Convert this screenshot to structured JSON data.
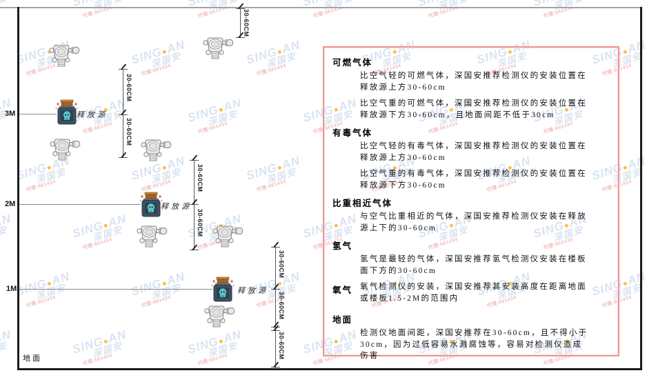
{
  "diagram": {
    "height_3m": "3M",
    "height_2m": "2M",
    "height_1m": "1M",
    "ground_label": "地面",
    "release_source_label": "释放源",
    "dim_label": "30-60CM"
  },
  "watermark": {
    "brand_left": "SING",
    "brand_dot": "●",
    "brand_right": "AN",
    "cjk": "深国安",
    "sub": "代理:661434"
  },
  "info_box": {
    "sections": [
      {
        "heading": "可燃气体",
        "inline": false,
        "paragraphs": [
          "比空气轻的可燃气体，深国安推荐检测仪的安装位置在释放源上方30-60cm",
          "比空气重的可燃气体，深国安推荐检测仪的安装位置在释放源下方30-60cm，且地面间距不低于30cm"
        ]
      },
      {
        "heading": "有毒气体",
        "inline": false,
        "paragraphs": [
          "比空气轻的有毒气体，深国安推荐检测仪的安装位置在释放源上方30-60cm",
          "比空气重的有毒气体，深国安推荐检测仪的安装位置在释放源下方30-60cm"
        ]
      },
      {
        "heading": "比重相近气体",
        "inline": false,
        "paragraphs": [
          "与空气比重相近的气体，深国安推荐检测仪安装在释放源上下的30-60cm"
        ]
      },
      {
        "heading": "氢气",
        "inline": false,
        "paragraphs": [
          "氢气是最轻的气体，深国安推荐氢气检测仪安装在楼板面下方的30-60cm"
        ]
      },
      {
        "heading": "氧气",
        "inline": true,
        "paragraphs": [
          "氧气检测仪的安装，深国安推荐其安装高度在距离地面或楼板1.5-2M的范围内"
        ]
      },
      {
        "heading": "地面",
        "inline": false,
        "paragraphs": [
          "检测仪地面间距，深国安推荐在30-60cm，且不得小于30cm，因为过低容易水溅腐蚀等，容易对检测仪造成伤害"
        ]
      }
    ]
  },
  "colors": {
    "info_border": "#f09595",
    "source_body": "#3d5064",
    "source_cap": "#b06a2a",
    "source_glyph": "#5ac8c8",
    "watermark_blue": "#6e91c8",
    "watermark_dot": "#f5b428",
    "watermark_red": "#e15a5a"
  }
}
